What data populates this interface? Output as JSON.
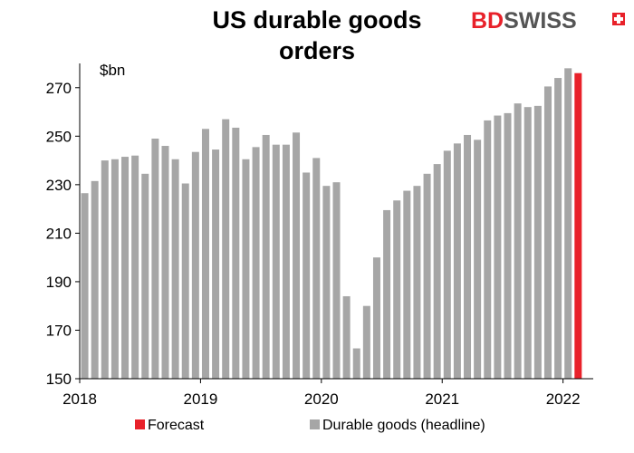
{
  "chart_data": {
    "type": "bar",
    "title_lines": [
      "US durable goods",
      "orders"
    ],
    "unit_label": "$bn",
    "ylim": [
      150,
      280
    ],
    "yticks": [
      150,
      170,
      190,
      210,
      230,
      250,
      270
    ],
    "x_tick_labels": [
      "2018",
      "2019",
      "2020",
      "2021",
      "2022"
    ],
    "x_tick_index": [
      0,
      12,
      24,
      36,
      48
    ],
    "grid": false,
    "legend_position": "bottom",
    "series": [
      {
        "name": "Durable goods (headline)",
        "color": "#a6a6a6",
        "values": [
          226.5,
          231.5,
          240,
          240.5,
          241.5,
          242,
          234.5,
          249,
          246,
          240.5,
          230.5,
          243.5,
          253,
          244.5,
          257,
          253.5,
          240.5,
          245.5,
          250.5,
          246.5,
          246.5,
          251.5,
          235,
          241,
          229.5,
          231,
          184,
          162.5,
          180,
          200,
          219.5,
          223.5,
          227.5,
          229.5,
          234.5,
          238.5,
          244,
          247,
          250.5,
          248.5,
          256.5,
          258.5,
          259.5,
          263.5,
          262,
          262.5,
          270.5,
          274,
          278
        ]
      },
      {
        "name": "Forecast",
        "color": "#e8212a",
        "index": 49,
        "value": 276
      }
    ]
  },
  "logo": {
    "part1": "BD",
    "part2": "SWISS"
  }
}
